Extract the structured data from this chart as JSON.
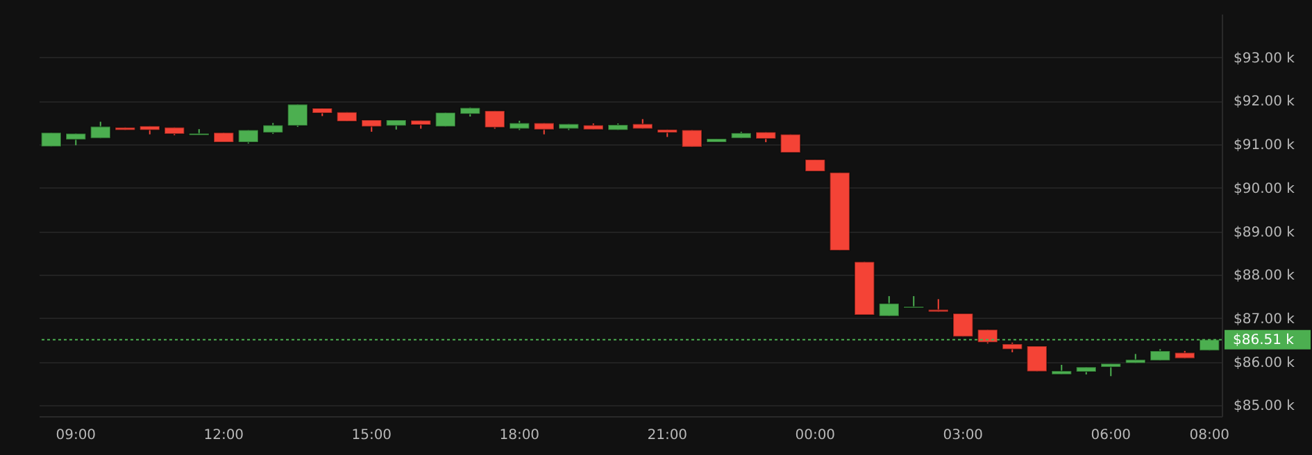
{
  "chart_data": {
    "type": "candlestick",
    "categories": [
      null,
      "09:00",
      null,
      null,
      null,
      null,
      null,
      "12:00",
      null,
      null,
      null,
      null,
      null,
      "15:00",
      null,
      null,
      null,
      null,
      null,
      "18:00",
      null,
      null,
      null,
      null,
      null,
      "21:00",
      null,
      null,
      null,
      null,
      null,
      "00:00",
      null,
      null,
      null,
      null,
      null,
      "03:00",
      null,
      null,
      null,
      null,
      null,
      "06:00",
      null,
      null,
      null,
      "08:00"
    ],
    "ohlc": [
      [
        90.95,
        91.27,
        90.95,
        91.27
      ],
      [
        91.11,
        91.25,
        90.98,
        91.25
      ],
      [
        91.14,
        91.52,
        91.14,
        91.41
      ],
      [
        91.39,
        91.39,
        91.33,
        91.33
      ],
      [
        91.42,
        91.42,
        91.23,
        91.33
      ],
      [
        91.39,
        91.39,
        91.21,
        91.24
      ],
      [
        91.21,
        91.35,
        91.21,
        91.25
      ],
      [
        91.27,
        91.27,
        91.05,
        91.05
      ],
      [
        91.05,
        91.33,
        91.02,
        91.33
      ],
      [
        91.27,
        91.49,
        91.24,
        91.44
      ],
      [
        91.43,
        91.92,
        91.4,
        91.92
      ],
      [
        91.83,
        91.83,
        91.65,
        91.72
      ],
      [
        91.74,
        91.74,
        91.53,
        91.53
      ],
      [
        91.56,
        91.56,
        91.29,
        91.41
      ],
      [
        91.43,
        91.56,
        91.34,
        91.56
      ],
      [
        91.55,
        91.55,
        91.36,
        91.45
      ],
      [
        91.41,
        91.73,
        91.41,
        91.73
      ],
      [
        91.7,
        91.85,
        91.64,
        91.84
      ],
      [
        91.77,
        91.77,
        91.36,
        91.39
      ],
      [
        91.36,
        91.54,
        91.33,
        91.49
      ],
      [
        91.49,
        91.49,
        91.23,
        91.34
      ],
      [
        91.36,
        91.47,
        91.33,
        91.47
      ],
      [
        91.44,
        91.48,
        91.34,
        91.34
      ],
      [
        91.33,
        91.48,
        91.33,
        91.45
      ],
      [
        91.47,
        91.58,
        91.36,
        91.36
      ],
      [
        91.34,
        91.34,
        91.17,
        91.27
      ],
      [
        91.33,
        91.33,
        90.94,
        90.94
      ],
      [
        91.05,
        91.13,
        91.05,
        91.13
      ],
      [
        91.14,
        91.29,
        91.14,
        91.26
      ],
      [
        91.28,
        91.28,
        91.05,
        91.13
      ],
      [
        91.23,
        91.23,
        90.81,
        90.81
      ],
      [
        90.65,
        90.65,
        90.38,
        90.38
      ],
      [
        90.35,
        90.35,
        88.56,
        88.56
      ],
      [
        88.3,
        88.3,
        87.08,
        87.08
      ],
      [
        87.05,
        87.51,
        87.05,
        87.34
      ],
      [
        87.24,
        87.51,
        87.24,
        87.27
      ],
      [
        87.2,
        87.44,
        87.15,
        87.15
      ],
      [
        87.11,
        87.11,
        86.58,
        86.58
      ],
      [
        86.74,
        86.74,
        86.42,
        86.45
      ],
      [
        86.41,
        86.44,
        86.22,
        86.29
      ],
      [
        86.36,
        86.36,
        85.78,
        85.78
      ],
      [
        85.71,
        85.93,
        85.71,
        85.79
      ],
      [
        85.77,
        85.88,
        85.71,
        85.88
      ],
      [
        85.88,
        85.96,
        85.67,
        85.96
      ],
      [
        85.97,
        86.18,
        85.97,
        86.05
      ],
      [
        86.03,
        86.29,
        86.03,
        86.25
      ],
      [
        86.21,
        86.25,
        86.08,
        86.08
      ],
      [
        86.26,
        86.51,
        86.26,
        86.51
      ]
    ],
    "colors": [
      "#4caf50",
      "#4caf50",
      "#4caf50",
      "#f44336",
      "#f44336",
      "#f44336",
      "#4caf50",
      "#f44336",
      "#4caf50",
      "#4caf50",
      "#4caf50",
      "#f44336",
      "#f44336",
      "#f44336",
      "#4caf50",
      "#f44336",
      "#4caf50",
      "#4caf50",
      "#f44336",
      "#4caf50",
      "#f44336",
      "#4caf50",
      "#f44336",
      "#4caf50",
      "#f44336",
      "#f44336",
      "#f44336",
      "#4caf50",
      "#4caf50",
      "#f44336",
      "#f44336",
      "#f44336",
      "#f44336",
      "#f44336",
      "#4caf50",
      "#4caf50",
      "#f44336",
      "#f44336",
      "#f44336",
      "#f44336",
      "#f44336",
      "#4caf50",
      "#4caf50",
      "#4caf50",
      "#4caf50",
      "#4caf50",
      "#f44336",
      "#4caf50"
    ],
    "ylim": [
      84.75,
      94.0
    ],
    "yticks": [
      {
        "value": 85,
        "label": "$85.00 k"
      },
      {
        "value": 86,
        "label": "$86.00 k"
      },
      {
        "value": 87,
        "label": "$87.00 k"
      },
      {
        "value": 88,
        "label": "$88.00 k"
      },
      {
        "value": 89,
        "label": "$89.00 k"
      },
      {
        "value": 90,
        "label": "$90.00 k"
      },
      {
        "value": 91,
        "label": "$91.00 k"
      },
      {
        "value": 92,
        "label": "$92.00 k"
      },
      {
        "value": 93,
        "label": "$93.00 k"
      }
    ],
    "grid": "y",
    "ref_lines": [
      {
        "axis": "y",
        "value": 86.51,
        "label": "$86.51 k",
        "color": "#4caf50",
        "line_style": "dotted"
      }
    ]
  }
}
